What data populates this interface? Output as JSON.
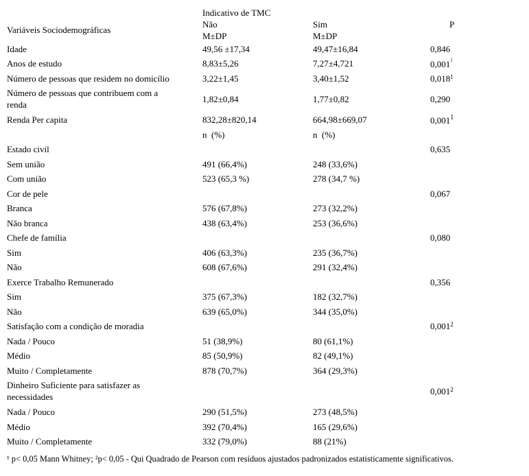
{
  "document": {
    "background_color": "#ffffff",
    "text_color": "#000000"
  },
  "table": {
    "stub_header": "Variáveis Sociodemográficas",
    "span_header": "Indicativo de TMC",
    "columns": {
      "nao": {
        "label": "Não",
        "subheader": "M±DP"
      },
      "sim": {
        "label": "Sim",
        "subheader": "M±DP"
      },
      "p": {
        "label": "P"
      }
    },
    "rows": [
      {
        "label": "Idade",
        "nao": "49,56 ±17,34",
        "sim": "49,47±16,84",
        "p": "0,846"
      },
      {
        "label": "Anos de estudo",
        "nao": "8,83±5,26",
        "sim": "7,27±4,721",
        "p": "0,001",
        "p_sup": "1",
        "p_sup_style": "tiny"
      },
      {
        "label": "Número de pessoas que residem no domicílio",
        "nao": "3,22±1,45",
        "sim": "3,40±1,52",
        "p": "0,018",
        "p_sup": "1",
        "p_sup_style": "inline"
      },
      {
        "label": "Número de pessoas que contribuem com a renda",
        "nao": "1,82±0,84",
        "sim": "1,77±0,82",
        "p": "0,290",
        "wrap": true
      },
      {
        "label": "Renda Per capita",
        "nao": "832,28±820,14",
        "sim": "664,98±669,07",
        "p": "0,001",
        "p_sup": "1",
        "p_sup_style": "raised"
      },
      {
        "label": "",
        "nao": "n  (%)",
        "sim": "n  (%)",
        "p": ""
      },
      {
        "label": "Estado civil",
        "nao": "",
        "sim": "",
        "p": "0,635"
      },
      {
        "label": "Sem união",
        "nao": "491 (66,4%)",
        "sim": "248 (33,6%)",
        "p": ""
      },
      {
        "label": "Com união",
        "nao": "523 (65,3 %)",
        "sim": "278 (34,7 %)",
        "p": ""
      },
      {
        "label": "Cor de pele",
        "nao": "",
        "sim": "",
        "p": "0,067"
      },
      {
        "label": "Branca",
        "nao": "576 (67,8%)",
        "sim": "273 (32,2%)",
        "p": ""
      },
      {
        "label": "Não branca",
        "nao": "438 (63,4%)",
        "sim": "253 (36,6%)",
        "p": ""
      },
      {
        "label": "Chefe de família",
        "nao": "",
        "sim": "",
        "p": "0,080"
      },
      {
        "label": "Sim",
        "nao": "406 (63,3%)",
        "sim": "235 (36,7%)",
        "p": ""
      },
      {
        "label": "Não",
        "nao": "608 (67,6%)",
        "sim": "291 (32,4%)",
        "p": ""
      },
      {
        "label": "Exerce Trabalho Remunerado",
        "nao": "",
        "sim": "",
        "p": "0,356"
      },
      {
        "label": "Sim",
        "nao": "375 (67,3%)",
        "sim": "182 (32,7%)",
        "p": ""
      },
      {
        "label": "Não",
        "nao": "639 (65,0%)",
        "sim": "344 (35,0%)",
        "p": ""
      },
      {
        "label": "Satisfação com a condição de moradia",
        "nao": "",
        "sim": "",
        "p": "0,001",
        "p_sup": "2",
        "p_sup_style": "inline"
      },
      {
        "label": "Nada / Pouco",
        "nao": "51 (38,9%)",
        "sim": "80 (61,1%)",
        "p": ""
      },
      {
        "label": "Médio",
        "nao": "85 (50,9%)",
        "sim": "82 (49,1%)",
        "p": ""
      },
      {
        "label": "Muito / Completamente",
        "nao": "878 (70,7%)",
        "sim": "364 (29,3%)",
        "p": ""
      },
      {
        "label": "Dinheiro Suficiente para satisfazer as necessidades",
        "nao": "",
        "sim": "",
        "p": "0,001",
        "p_sup": "2",
        "p_sup_style": "inline",
        "wrap": true
      },
      {
        "label": "Nada / Pouco",
        "nao": "290 (51,5%)",
        "sim": "273 (48,5%)",
        "p": ""
      },
      {
        "label": "Médio",
        "nao": "392 (70,4%)",
        "sim": "165 (29,6%)",
        "p": ""
      },
      {
        "label": "Muito / Completamente",
        "nao": "332 (79,0%)",
        "sim": "88 (21%)",
        "p": ""
      }
    ],
    "footnote": "¹ p< 0,05 Mann Whitney; ²p< 0,05 - Qui Quadrado de Pearson com resíduos ajustados padronizados estatisticamente significativos."
  }
}
